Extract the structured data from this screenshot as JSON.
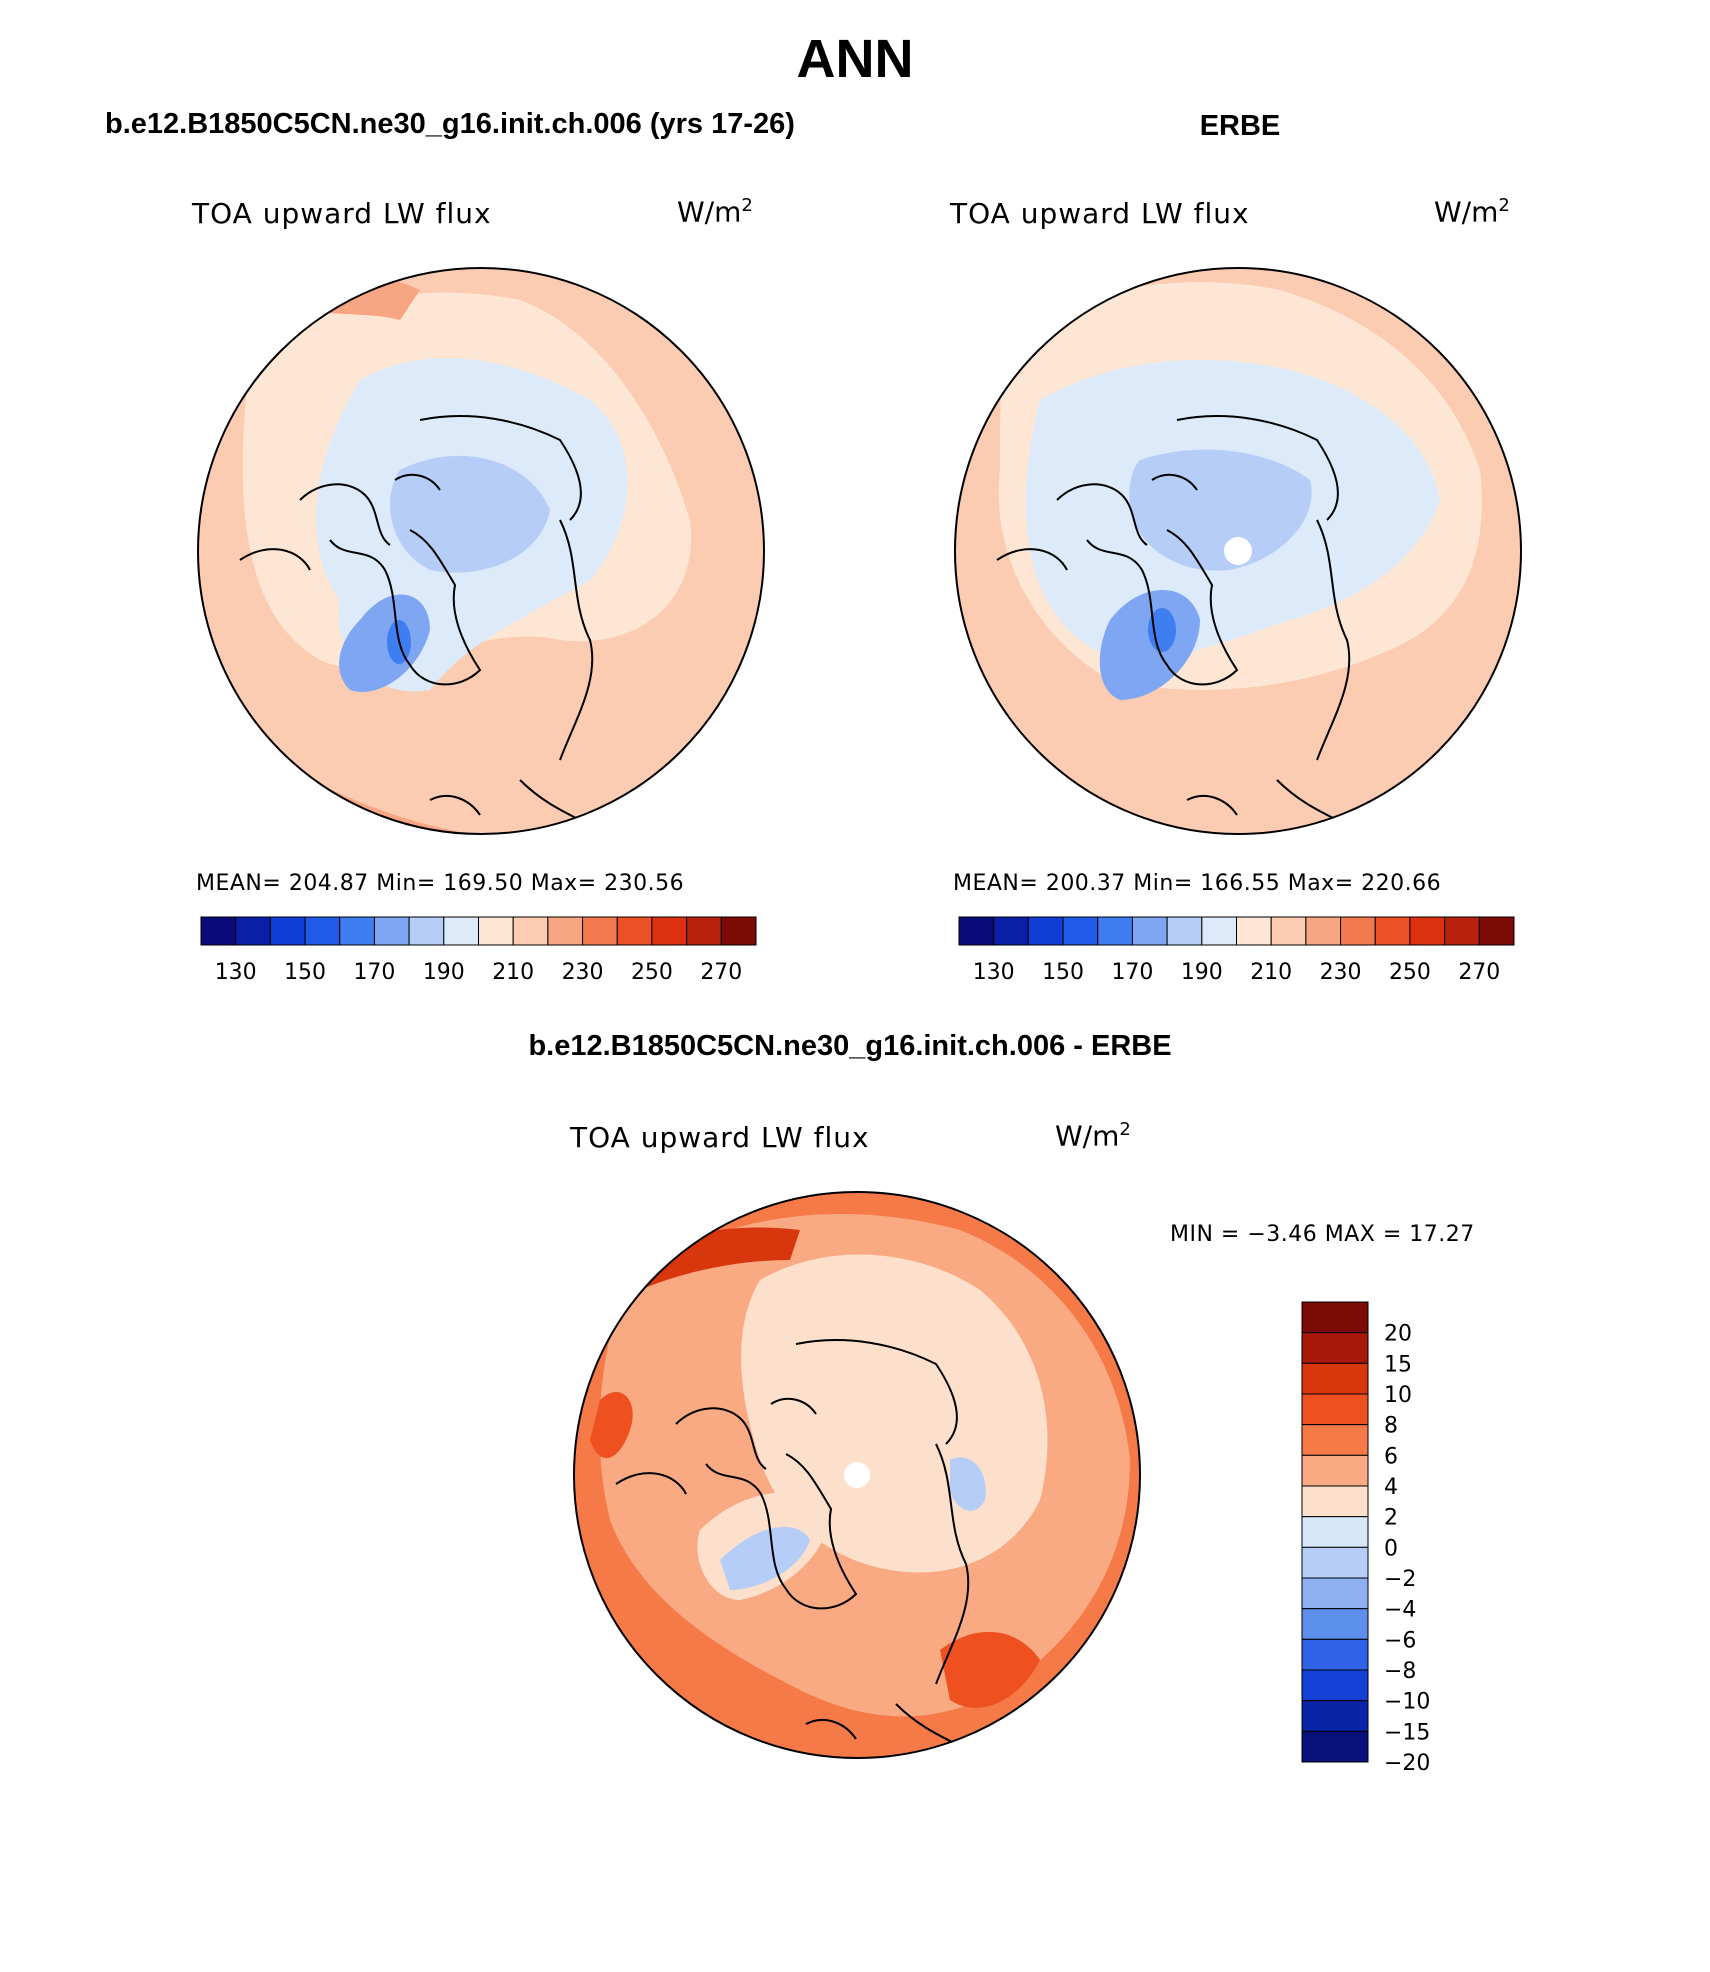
{
  "title": "ANN",
  "panels": {
    "case": {
      "header": "b.e12.B1850C5CN.ne30_g16.init.ch.006 (yrs 17-26)",
      "variable": "TOA upward LW flux",
      "units_base": "W/m",
      "units_exp": "2",
      "stats": "MEAN= 204.87   Min= 169.50   Max= 230.56"
    },
    "obs": {
      "header": "ERBE",
      "variable": "TOA upward LW flux",
      "units_base": "W/m",
      "units_exp": "2",
      "stats": "MEAN= 200.37   Min= 166.55   Max= 220.66"
    },
    "diff": {
      "header": "b.e12.B1850C5CN.ne30_g16.init.ch.006 - ERBE",
      "variable": "TOA upward LW flux",
      "units_base": "W/m",
      "units_exp": "2",
      "stats": "MIN =   −3.46 MAX =   17.27"
    }
  },
  "colorbar_main": {
    "colors": [
      "#0a0a7a",
      "#0a1fa8",
      "#0f3dd6",
      "#1f5ae8",
      "#3f7ef0",
      "#7ea6f2",
      "#b6cef7",
      "#dceaf9",
      "#fde6d4",
      "#fbcbb2",
      "#f7a582",
      "#f27a4f",
      "#ec5026",
      "#de3111",
      "#b8210d",
      "#7c0a05"
    ],
    "labels": [
      "130",
      "150",
      "170",
      "190",
      "210",
      "230",
      "250",
      "270"
    ]
  },
  "colorbar_diff": {
    "colors": [
      "#7c0a05",
      "#a8180a",
      "#d8360d",
      "#ef5020",
      "#f57a48",
      "#f9aa83",
      "#fde0cc",
      "#d6e7f8",
      "#b6cef7",
      "#8fb0f0",
      "#5c8eec",
      "#2f62e6",
      "#1440d6",
      "#0a24a8",
      "#08117a"
    ],
    "labels": [
      "20",
      "15",
      "10",
      "8",
      "6",
      "4",
      "2",
      "0",
      "−2",
      "−4",
      "−6",
      "−8",
      "−10",
      "−15",
      "−20"
    ]
  }
}
